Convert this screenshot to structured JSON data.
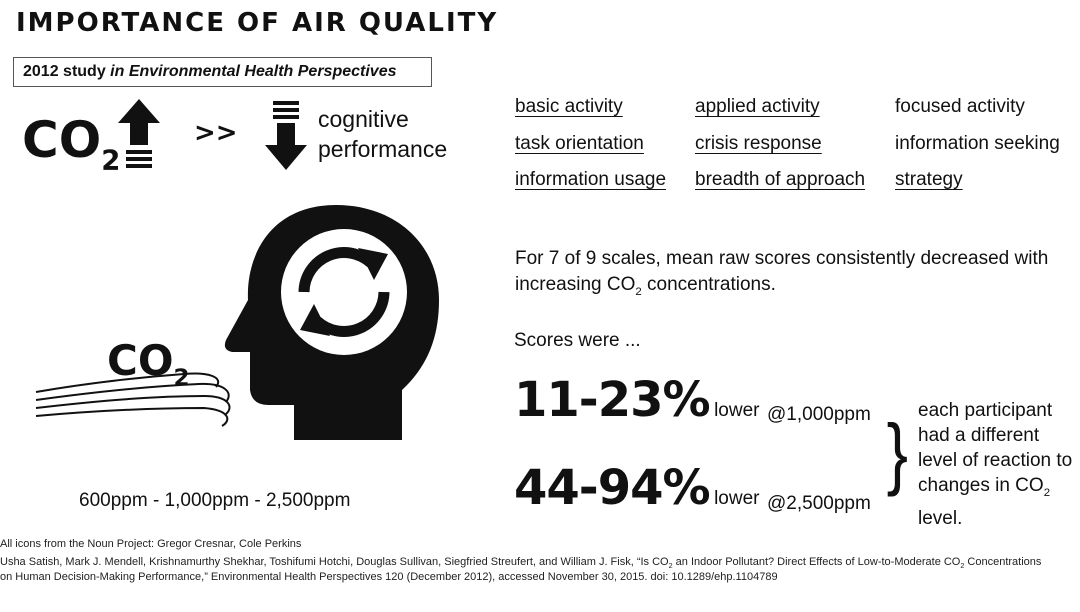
{
  "title": "IMPORTANCE OF AIR QUALITY",
  "study": {
    "year": "2012 study",
    "journal": "in Environmental Health Perspectives"
  },
  "co2_top": {
    "main": "CO",
    "sub": "2"
  },
  "relation": ">>",
  "cognitive": {
    "line1": "cognitive",
    "line2": "performance"
  },
  "scales": [
    {
      "label": "basic activity",
      "underlined": true
    },
    {
      "label": "applied activity",
      "underlined": true
    },
    {
      "label": "focused activity",
      "underlined": false
    },
    {
      "label": "task orientation",
      "underlined": true
    },
    {
      "label": "crisis response",
      "underlined": true
    },
    {
      "label": "information seeking",
      "underlined": false
    },
    {
      "label": "information usage",
      "underlined": true
    },
    {
      "label": "breadth of approach",
      "underlined": true
    },
    {
      "label": "strategy",
      "underlined": true
    }
  ],
  "finding": {
    "part1": "For 7 of 9 scales, mean raw scores consistently decreased with increasing CO",
    "sub": "2",
    "part2": " concentrations."
  },
  "scores_were": "Scores were ...",
  "results": [
    {
      "pct": "11-23%",
      "lower": "lower",
      "at": "@1,000ppm"
    },
    {
      "pct": "44-94%",
      "lower": "lower",
      "at": "@2,500ppm"
    }
  ],
  "brace": "}",
  "note": {
    "part1": "each participant had a different level of reaction to changes in CO",
    "sub": "2",
    "part2": " level."
  },
  "co2_head": {
    "main": "CO",
    "sub": "2"
  },
  "ppm_range": "600ppm - 1,000ppm - 2,500ppm",
  "footer": {
    "icons": "All icons from the Noun Project: Gregor Cresnar, Cole Perkins",
    "cite1a": "Usha Satish, Mark J. Mendell, Krishnamurthy Shekhar, Toshifumi Hotchi, Douglas Sullivan, Siegfried Streufert, and William J. Fisk, “Is CO",
    "cite1sub": "2",
    "cite1b": " an Indoor Pollutant? Direct Effects of Low-to-Moderate CO",
    "cite1sub2": "2",
    "cite1c": " Concentrations",
    "cite2": "on Human Decision-Making Performance,” Environmental Health Perspectives 120 (December 2012), accessed November 30, 2015. doi: 10.1289/ehp.1104789"
  },
  "colors": {
    "ink": "#111111",
    "background": "#ffffff",
    "box_border": "#555555"
  }
}
